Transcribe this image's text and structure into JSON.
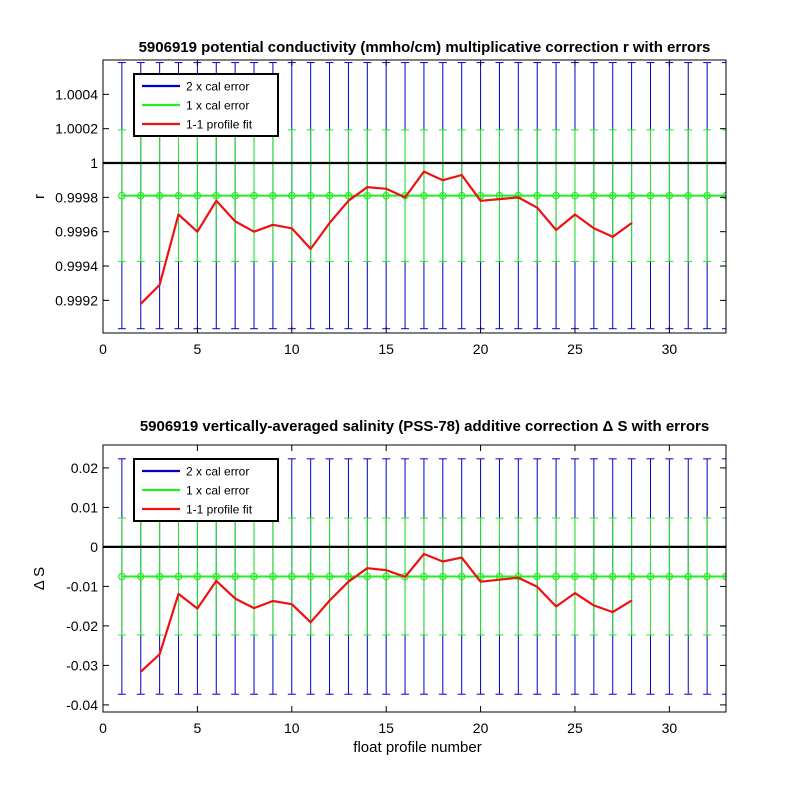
{
  "colors": {
    "two_cal": "#0000cc",
    "one_cal": "#22ee22",
    "fit": "#ee1111",
    "zero_line": "#000000",
    "grid": "#dddddd"
  },
  "chart_data": [
    {
      "type": "line",
      "title": "5906919 potential conductivity (mmho/cm) multiplicative correction r with errors",
      "xlabel": "",
      "ylabel": "r",
      "xlim": [
        0,
        33
      ],
      "ylim": [
        0.99901,
        1.0006
      ],
      "xticks": [
        0,
        5,
        10,
        15,
        20,
        25,
        30
      ],
      "xtick_labels": [
        "0",
        "5",
        "10",
        "15",
        "20",
        "25",
        "30"
      ],
      "yticks": [
        0.9992,
        0.9994,
        0.9996,
        0.9998,
        1,
        1.0002,
        1.0004
      ],
      "ytick_labels": [
        "0.9992",
        "0.9994",
        "0.9996",
        "0.9998",
        "1",
        "1.0002",
        "1.0004"
      ],
      "legend": {
        "placement": "top-left",
        "entries": [
          "2 x cal error",
          "1 x cal error",
          "1-1 profile fit"
        ]
      },
      "reference_line": 1,
      "correction": {
        "x": [
          1,
          2,
          3,
          4,
          5,
          6,
          7,
          8,
          9,
          10,
          11,
          12,
          13,
          14,
          15,
          16,
          17,
          18,
          19,
          20,
          21,
          22,
          23,
          24,
          25,
          26,
          27,
          28,
          29,
          30,
          31,
          32,
          33
        ],
        "value": 0.99981,
        "cal_error_1x": 0.000383,
        "cal_error_2x": 0.000775
      },
      "series": [
        {
          "name": "1-1 profile fit",
          "x": [
            2,
            3,
            4,
            5,
            6,
            7,
            8,
            9,
            10,
            11,
            12,
            13,
            14,
            15,
            16,
            17,
            18,
            19,
            20,
            21,
            22,
            23,
            24,
            25,
            26,
            27,
            28
          ],
          "y": [
            0.99918,
            0.99929,
            0.9997,
            0.9996,
            0.99978,
            0.99966,
            0.9996,
            0.99964,
            0.99962,
            0.9995,
            0.99965,
            0.99978,
            0.99986,
            0.99985,
            0.9998,
            0.99995,
            0.9999,
            0.99993,
            0.99978,
            0.99979,
            0.9998,
            0.99974,
            0.99961,
            0.9997,
            0.99962,
            0.99957,
            0.99965
          ]
        }
      ]
    },
    {
      "type": "line",
      "title": "5906919 vertically-averaged salinity (PSS-78) additive correction Δ S with errors",
      "xlabel": "float profile number",
      "ylabel": "Δ S",
      "xlim": [
        0,
        33
      ],
      "ylim": [
        -0.0418,
        0.0258
      ],
      "xticks": [
        0,
        5,
        10,
        15,
        20,
        25,
        30
      ],
      "xtick_labels": [
        "0",
        "5",
        "10",
        "15",
        "20",
        "25",
        "30"
      ],
      "yticks": [
        -0.04,
        -0.03,
        -0.02,
        -0.01,
        0,
        0.01,
        0.02
      ],
      "ytick_labels": [
        "-0.04",
        "-0.03",
        "-0.02",
        "-0.01",
        "0",
        "0.01",
        "0.02"
      ],
      "legend": {
        "placement": "top-left",
        "entries": [
          "2 x cal error",
          "1 x cal error",
          "1-1 profile fit"
        ]
      },
      "reference_line": 0,
      "correction": {
        "x": [
          1,
          2,
          3,
          4,
          5,
          6,
          7,
          8,
          9,
          10,
          11,
          12,
          13,
          14,
          15,
          16,
          17,
          18,
          19,
          20,
          21,
          22,
          23,
          24,
          25,
          26,
          27,
          28,
          29,
          30,
          31,
          32,
          33
        ],
        "value": -0.0075,
        "cal_error_1x": 0.0148,
        "cal_error_2x": 0.0298
      },
      "series": [
        {
          "name": "1-1 profile fit",
          "x": [
            2,
            3,
            4,
            5,
            6,
            7,
            8,
            9,
            10,
            11,
            12,
            13,
            14,
            15,
            16,
            17,
            18,
            19,
            20,
            21,
            22,
            23,
            24,
            25,
            26,
            27,
            28
          ],
          "y": [
            -0.0316,
            -0.0272,
            -0.0119,
            -0.0156,
            -0.0086,
            -0.0131,
            -0.0155,
            -0.0137,
            -0.0145,
            -0.0191,
            -0.0136,
            -0.0088,
            -0.0054,
            -0.0059,
            -0.0076,
            -0.0018,
            -0.0037,
            -0.0027,
            -0.0088,
            -0.0083,
            -0.0078,
            -0.0101,
            -0.0151,
            -0.0117,
            -0.0148,
            -0.0165,
            -0.0136
          ]
        }
      ]
    }
  ]
}
